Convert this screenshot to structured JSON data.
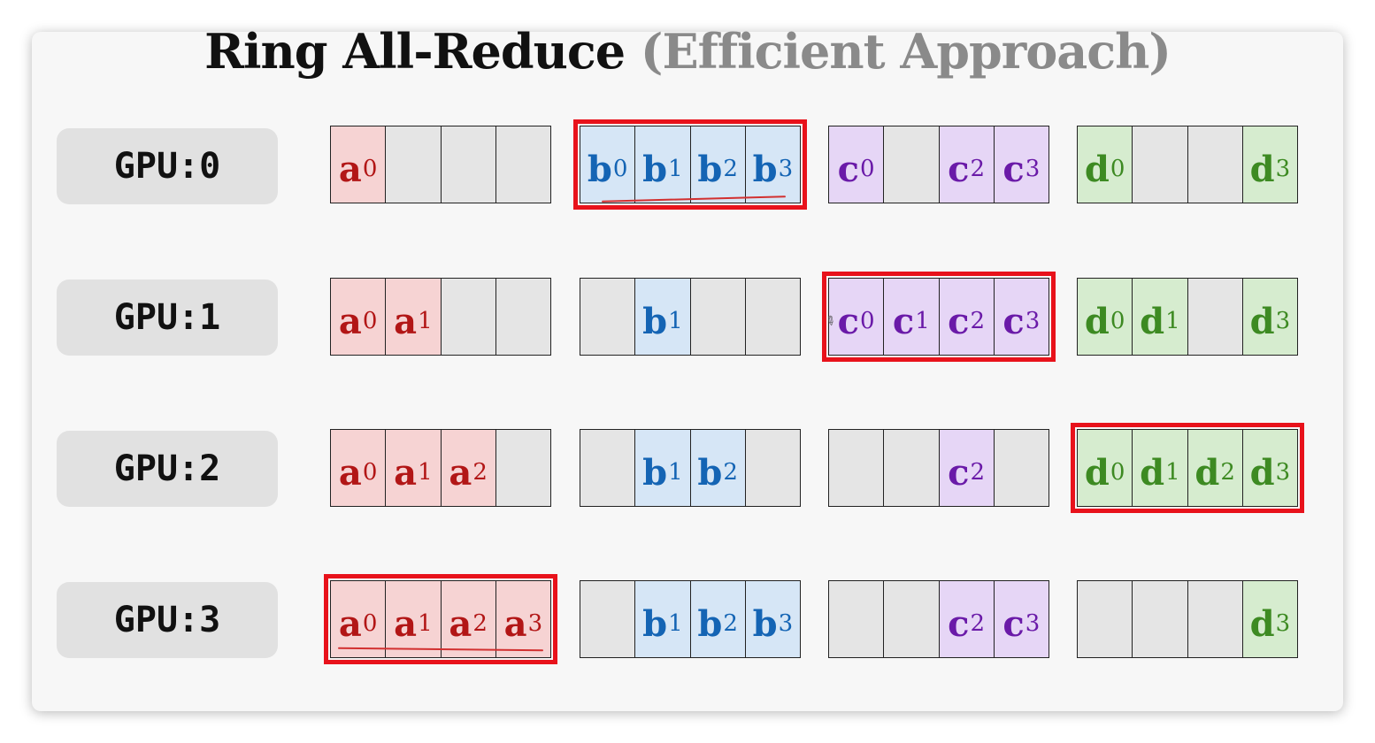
{
  "title": {
    "main": "Ring All-Reduce",
    "sub": "(Efficient Approach)"
  },
  "colors": {
    "highlight": "#e8121b",
    "a": "#b21616",
    "b": "#1464b4",
    "c": "#6a1aa8",
    "d": "#3d8a22",
    "empty": "#e5e5e5"
  },
  "rows": [
    {
      "label": "GPU:0",
      "blocks": [
        {
          "cells": [
            "a0",
            "",
            "",
            ""
          ],
          "highlight": false
        },
        {
          "cells": [
            "b0",
            "b1",
            "b2",
            "b3"
          ],
          "highlight": true
        },
        {
          "cells": [
            "c0",
            "",
            "c2",
            "c3"
          ],
          "highlight": false
        },
        {
          "cells": [
            "d0",
            "",
            "",
            "d3"
          ],
          "highlight": false
        }
      ]
    },
    {
      "label": "GPU:1",
      "blocks": [
        {
          "cells": [
            "a0",
            "a1",
            "",
            ""
          ],
          "highlight": false
        },
        {
          "cells": [
            "",
            "b1",
            "",
            ""
          ],
          "highlight": false
        },
        {
          "cells": [
            "c0",
            "c1",
            "c2",
            "c3"
          ],
          "highlight": true
        },
        {
          "cells": [
            "d0",
            "d1",
            "",
            "d3"
          ],
          "highlight": false
        }
      ]
    },
    {
      "label": "GPU:2",
      "blocks": [
        {
          "cells": [
            "a0",
            "a1",
            "a2",
            ""
          ],
          "highlight": false
        },
        {
          "cells": [
            "",
            "b1",
            "b2",
            ""
          ],
          "highlight": false
        },
        {
          "cells": [
            "",
            "",
            "c2",
            ""
          ],
          "highlight": false
        },
        {
          "cells": [
            "d0",
            "d1",
            "d2",
            "d3"
          ],
          "highlight": true
        }
      ]
    },
    {
      "label": "GPU:3",
      "blocks": [
        {
          "cells": [
            "a0",
            "a1",
            "a2",
            "a3"
          ],
          "highlight": true
        },
        {
          "cells": [
            "",
            "b1",
            "b2",
            "b3"
          ],
          "highlight": false
        },
        {
          "cells": [
            "",
            "",
            "c2",
            "c3"
          ],
          "highlight": false
        },
        {
          "cells": [
            "",
            "",
            "",
            "d3"
          ],
          "highlight": false
        }
      ]
    }
  ]
}
